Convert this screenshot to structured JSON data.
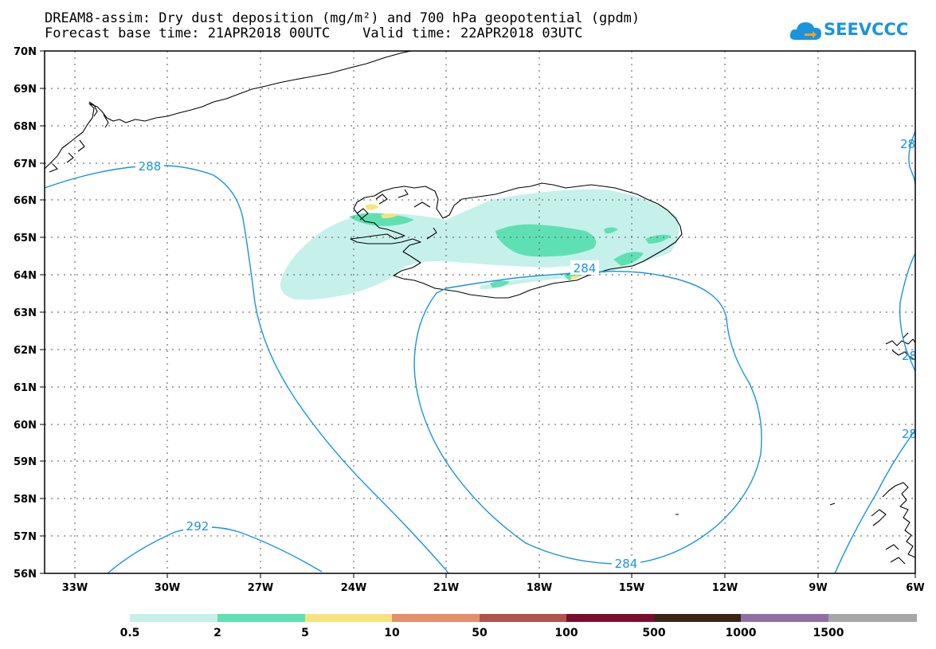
{
  "title": {
    "line1": "DREAM8-assim: Dry dust deposition (mg/m²) and 700 hPa geopotential (gpdm)",
    "line2": "Forecast base time: 21APR2018 00UTC    Valid time: 22APR2018 03UTC"
  },
  "logo": {
    "text": "SEEVCCC",
    "icon": "cloud-icon"
  },
  "map": {
    "lat_labels": [
      "70N",
      "69N",
      "68N",
      "67N",
      "66N",
      "65N",
      "64N",
      "63N",
      "62N",
      "61N",
      "60N",
      "59N",
      "58N",
      "57N",
      "56N"
    ],
    "lon_labels": [
      "33W",
      "30W",
      "27W",
      "24W",
      "21W",
      "18W",
      "15W",
      "12W",
      "9W",
      "6W"
    ],
    "lat_range": [
      56,
      70
    ],
    "lon_range": [
      -34.5,
      -6
    ],
    "gridlines": "dotted",
    "contour_color": "#1a94dc",
    "contour_labels": [
      "288",
      "284",
      "292",
      "284",
      "28",
      "28",
      "28"
    ]
  },
  "legend": {
    "colors": [
      "#c6f1ea",
      "#5fe0b4",
      "#f7e37e",
      "#e78f6a",
      "#b3514b",
      "#7b0d2c",
      "#3b2614",
      "#916fa6",
      "#a6a6a6"
    ],
    "labels": [
      "0.5",
      "2",
      "5",
      "10",
      "50",
      "100",
      "500",
      "1000",
      "1500"
    ]
  }
}
